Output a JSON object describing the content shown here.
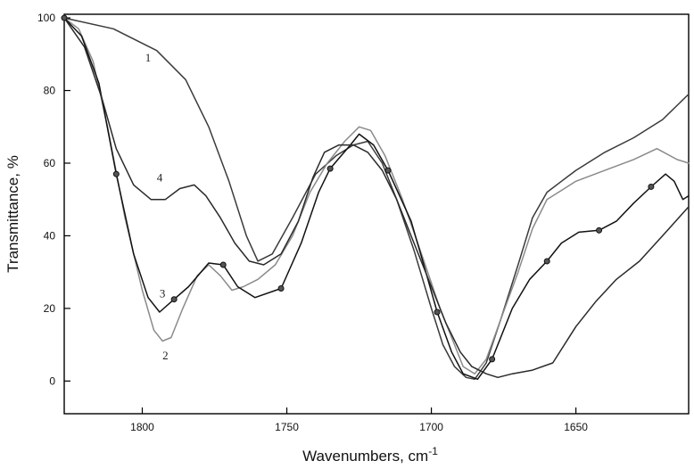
{
  "chart_data": {
    "type": "line",
    "title": "",
    "xlabel": "Wavenumbers, cm",
    "xlabel_superscript": "-1",
    "ylabel": "Transmittance, %",
    "xlim": [
      1827,
      1611
    ],
    "ylim": [
      -9,
      101
    ],
    "x_reversed": true,
    "grid": false,
    "legend": "none",
    "x_ticks": [
      {
        "value": 1800,
        "label": "1800"
      },
      {
        "value": 1750,
        "label": "1750"
      },
      {
        "value": 1700,
        "label": "1700"
      },
      {
        "value": 1650,
        "label": "1650"
      }
    ],
    "y_ticks": [
      {
        "value": 0,
        "label": "0"
      },
      {
        "value": 20,
        "label": "20"
      },
      {
        "value": 40,
        "label": "40"
      },
      {
        "value": 60,
        "label": "60"
      },
      {
        "value": 80,
        "label": "80"
      },
      {
        "value": 100,
        "label": "100"
      }
    ],
    "series": [
      {
        "name": "1",
        "label_at": [
          1798,
          88
        ],
        "color": "#3a3a3a",
        "markers": false,
        "points": [
          [
            1827,
            100
          ],
          [
            1810,
            97
          ],
          [
            1795,
            91
          ],
          [
            1785,
            83
          ],
          [
            1777,
            70
          ],
          [
            1770,
            55
          ],
          [
            1764,
            40
          ],
          [
            1760,
            33
          ],
          [
            1755,
            35
          ],
          [
            1748,
            45
          ],
          [
            1740,
            57
          ],
          [
            1733,
            62
          ],
          [
            1727,
            65
          ],
          [
            1722,
            66
          ],
          [
            1717,
            60
          ],
          [
            1712,
            50
          ],
          [
            1706,
            36
          ],
          [
            1700,
            20
          ],
          [
            1696,
            10
          ],
          [
            1692,
            4
          ],
          [
            1688,
            1
          ],
          [
            1685,
            0.5
          ],
          [
            1681,
            5
          ],
          [
            1676,
            17
          ],
          [
            1670,
            32
          ],
          [
            1665,
            45
          ],
          [
            1660,
            52
          ],
          [
            1655,
            55
          ],
          [
            1650,
            58
          ],
          [
            1640,
            63
          ],
          [
            1630,
            67
          ],
          [
            1620,
            72
          ],
          [
            1611,
            79
          ]
        ]
      },
      {
        "name": "2",
        "label_at": [
          1792,
          6
        ],
        "color": "#8a8a8a",
        "markers": false,
        "points": [
          [
            1827,
            100
          ],
          [
            1822,
            97
          ],
          [
            1817,
            88
          ],
          [
            1812,
            70
          ],
          [
            1806,
            45
          ],
          [
            1800,
            25
          ],
          [
            1796,
            14
          ],
          [
            1793,
            11
          ],
          [
            1790,
            12
          ],
          [
            1786,
            20
          ],
          [
            1781,
            29
          ],
          [
            1777,
            32
          ],
          [
            1773,
            29
          ],
          [
            1769,
            25
          ],
          [
            1765,
            26
          ],
          [
            1760,
            28
          ],
          [
            1754,
            32
          ],
          [
            1748,
            40
          ],
          [
            1742,
            52
          ],
          [
            1736,
            60
          ],
          [
            1730,
            66
          ],
          [
            1725,
            70
          ],
          [
            1721,
            69
          ],
          [
            1716,
            62
          ],
          [
            1710,
            50
          ],
          [
            1703,
            34
          ],
          [
            1697,
            20
          ],
          [
            1692,
            10
          ],
          [
            1689,
            4
          ],
          [
            1685,
            2
          ],
          [
            1681,
            6
          ],
          [
            1676,
            17
          ],
          [
            1670,
            30
          ],
          [
            1665,
            42
          ],
          [
            1660,
            50
          ],
          [
            1650,
            55
          ],
          [
            1640,
            58
          ],
          [
            1630,
            61
          ],
          [
            1622,
            64
          ],
          [
            1615,
            61
          ],
          [
            1611,
            60
          ]
        ]
      },
      {
        "name": "3",
        "label_at": [
          1793,
          23
        ],
        "color": "#111111",
        "markers": true,
        "points": [
          [
            1827,
            100
          ],
          [
            1821,
            95
          ],
          [
            1815,
            82
          ],
          [
            1809,
            57
          ],
          [
            1803,
            35
          ],
          [
            1798,
            23
          ],
          [
            1794,
            19
          ],
          [
            1789,
            22.5
          ],
          [
            1784,
            26
          ],
          [
            1777,
            32.5
          ],
          [
            1772,
            32
          ],
          [
            1767,
            26
          ],
          [
            1761,
            23
          ],
          [
            1752,
            25.5
          ],
          [
            1745,
            38
          ],
          [
            1739,
            52
          ],
          [
            1735,
            58.5
          ],
          [
            1728,
            65
          ],
          [
            1725,
            68
          ],
          [
            1720,
            65
          ],
          [
            1715,
            58
          ],
          [
            1707,
            44
          ],
          [
            1703,
            33
          ],
          [
            1698,
            19
          ],
          [
            1693,
            8
          ],
          [
            1689,
            2
          ],
          [
            1684,
            0.5
          ],
          [
            1679,
            6
          ],
          [
            1672,
            20
          ],
          [
            1666,
            28
          ],
          [
            1660,
            33
          ],
          [
            1655,
            38
          ],
          [
            1649,
            41
          ],
          [
            1642,
            41.5
          ],
          [
            1636,
            44
          ],
          [
            1630,
            49
          ],
          [
            1624,
            53.5
          ],
          [
            1619,
            57
          ],
          [
            1616,
            55
          ],
          [
            1613,
            50
          ],
          [
            1611,
            51
          ]
        ],
        "marker_points": [
          [
            1827,
            100
          ],
          [
            1809,
            57
          ],
          [
            1789,
            22.5
          ],
          [
            1772,
            32
          ],
          [
            1752,
            25.5
          ],
          [
            1735,
            58.5
          ],
          [
            1715,
            58
          ],
          [
            1698,
            19
          ],
          [
            1679,
            6
          ],
          [
            1660,
            33
          ],
          [
            1642,
            41.5
          ],
          [
            1624,
            53.5
          ]
        ]
      },
      {
        "name": "4",
        "label_at": [
          1794,
          55
        ],
        "color": "#2a2a2a",
        "markers": false,
        "points": [
          [
            1827,
            100
          ],
          [
            1820,
            92
          ],
          [
            1814,
            78
          ],
          [
            1809,
            64
          ],
          [
            1803,
            54
          ],
          [
            1797,
            50
          ],
          [
            1792,
            50
          ],
          [
            1787,
            53
          ],
          [
            1782,
            54
          ],
          [
            1778,
            51
          ],
          [
            1773,
            45
          ],
          [
            1768,
            38
          ],
          [
            1763,
            33
          ],
          [
            1758,
            32
          ],
          [
            1752,
            35
          ],
          [
            1746,
            44
          ],
          [
            1741,
            56
          ],
          [
            1737,
            63
          ],
          [
            1732,
            65
          ],
          [
            1727,
            65
          ],
          [
            1722,
            63
          ],
          [
            1717,
            58
          ],
          [
            1712,
            50
          ],
          [
            1706,
            38
          ],
          [
            1700,
            26
          ],
          [
            1695,
            16
          ],
          [
            1690,
            8
          ],
          [
            1686,
            4
          ],
          [
            1681,
            2
          ],
          [
            1677,
            1
          ],
          [
            1672,
            2
          ],
          [
            1665,
            3
          ],
          [
            1658,
            5
          ],
          [
            1650,
            15
          ],
          [
            1643,
            22
          ],
          [
            1636,
            28
          ],
          [
            1628,
            33
          ],
          [
            1620,
            40
          ],
          [
            1611,
            48
          ]
        ]
      }
    ]
  }
}
